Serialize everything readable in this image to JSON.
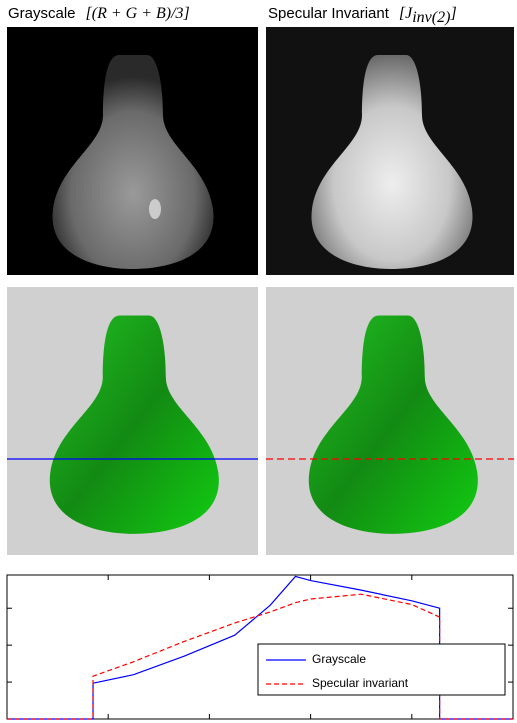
{
  "panels": {
    "left_title": {
      "name": "Grayscale",
      "formula": "[(R + G + B)/3]"
    },
    "right_title": {
      "name": "Specular Invariant",
      "formula_main": "[J",
      "formula_sub": "inv(2)",
      "formula_end": "]"
    }
  },
  "chart_data": {
    "type": "line",
    "x": [
      0,
      17,
      17,
      25,
      35,
      45,
      52,
      57,
      60,
      70,
      80,
      85.5,
      85.5,
      100
    ],
    "series": [
      {
        "name": "Grayscale",
        "color": "#0000ff",
        "dash": false,
        "values": [
          0,
          0,
          0.97,
          1.2,
          1.7,
          2.27,
          3.08,
          3.86,
          3.75,
          3.49,
          3.2,
          3.0,
          0,
          0
        ]
      },
      {
        "name": "Specular invariant",
        "color": "#ff0000",
        "dash": true,
        "values": [
          0,
          0,
          1.16,
          1.55,
          2.1,
          2.6,
          2.9,
          3.15,
          3.25,
          3.38,
          3.1,
          2.76,
          0,
          0
        ]
      }
    ],
    "xlim": [
      0,
      100
    ],
    "ylim": [
      0,
      3.9
    ],
    "xticks": [
      20,
      40,
      60,
      80
    ],
    "yticks": [
      1,
      2,
      3
    ]
  }
}
